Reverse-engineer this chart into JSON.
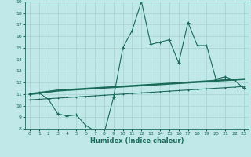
{
  "title": "",
  "xlabel": "Humidex (Indice chaleur)",
  "background_color": "#c0e8e8",
  "line_color": "#1a6b5a",
  "grid_color": "#a8d0d0",
  "xlim": [
    -0.5,
    23.5
  ],
  "ylim": [
    8,
    19
  ],
  "xticks": [
    0,
    1,
    2,
    3,
    4,
    5,
    6,
    7,
    8,
    9,
    10,
    11,
    12,
    13,
    14,
    15,
    16,
    17,
    18,
    19,
    20,
    21,
    22,
    23
  ],
  "yticks": [
    8,
    9,
    10,
    11,
    12,
    13,
    14,
    15,
    16,
    17,
    18,
    19
  ],
  "line1_x": [
    0,
    1,
    2,
    3,
    4,
    5,
    6,
    7,
    8,
    9,
    10,
    11,
    12,
    13,
    14,
    15,
    16,
    17,
    18,
    19,
    20,
    21,
    22,
    23
  ],
  "line1_y": [
    11.0,
    11.1,
    10.55,
    9.3,
    9.1,
    9.2,
    8.3,
    7.8,
    7.65,
    10.7,
    15.0,
    16.5,
    19.0,
    15.3,
    15.5,
    15.7,
    13.7,
    17.2,
    15.2,
    15.2,
    12.3,
    12.5,
    12.2,
    11.5
  ],
  "line2_x": [
    0,
    1,
    2,
    3,
    4,
    5,
    6,
    7,
    8,
    9,
    10,
    11,
    12,
    13,
    14,
    15,
    16,
    17,
    18,
    19,
    20,
    21,
    22,
    23
  ],
  "line2_y": [
    11.0,
    11.1,
    11.2,
    11.3,
    11.35,
    11.4,
    11.45,
    11.5,
    11.55,
    11.6,
    11.65,
    11.7,
    11.75,
    11.8,
    11.85,
    11.9,
    11.95,
    12.0,
    12.05,
    12.1,
    12.15,
    12.2,
    12.25,
    12.3
  ],
  "line3_x": [
    0,
    1,
    2,
    3,
    4,
    5,
    6,
    7,
    8,
    9,
    10,
    11,
    12,
    13,
    14,
    15,
    16,
    17,
    18,
    19,
    20,
    21,
    22,
    23
  ],
  "line3_y": [
    10.5,
    10.55,
    10.6,
    10.65,
    10.7,
    10.75,
    10.8,
    10.85,
    10.9,
    10.95,
    11.0,
    11.05,
    11.1,
    11.15,
    11.2,
    11.25,
    11.3,
    11.35,
    11.4,
    11.45,
    11.5,
    11.55,
    11.6,
    11.65
  ]
}
